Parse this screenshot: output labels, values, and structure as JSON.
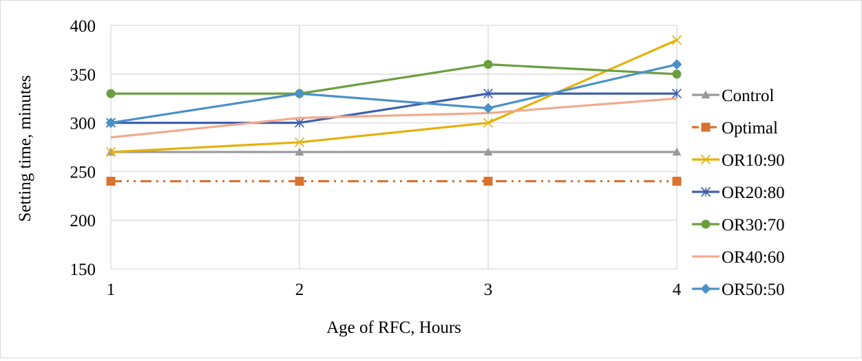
{
  "chart_data": {
    "type": "line",
    "title": "",
    "xlabel": "Age of RFC, Hours",
    "ylabel": "Setting time, minutes",
    "x": [
      1,
      2,
      3,
      4
    ],
    "x_tick_labels": [
      "1",
      "2",
      "3",
      "4"
    ],
    "ylim": [
      150,
      400
    ],
    "y_ticks": [
      150,
      200,
      250,
      300,
      350,
      400
    ],
    "grid": "both",
    "legend_position": "right",
    "series": [
      {
        "name": "Control",
        "values": [
          270,
          270,
          270,
          270
        ],
        "color": "#999999",
        "marker": "triangle",
        "dash": "solid"
      },
      {
        "name": "Optimal",
        "values": [
          240,
          240,
          240,
          240
        ],
        "color": "#D9722E",
        "marker": "square",
        "dash": "dash-dot-dot"
      },
      {
        "name": "OR10:90",
        "values": [
          270,
          280,
          300,
          385
        ],
        "color": "#E6B10A",
        "marker": "x",
        "dash": "solid"
      },
      {
        "name": "OR20:80",
        "values": [
          300,
          300,
          330,
          330
        ],
        "color": "#3E5FAF",
        "marker": "star",
        "dash": "solid"
      },
      {
        "name": "OR30:70",
        "values": [
          330,
          330,
          360,
          350
        ],
        "color": "#6A9E3F",
        "marker": "circle",
        "dash": "solid"
      },
      {
        "name": "OR40:60",
        "values": [
          285,
          305,
          310,
          325
        ],
        "color": "#F2A98E",
        "marker": "none",
        "dash": "solid"
      },
      {
        "name": "OR50:50",
        "values": [
          300,
          330,
          315,
          360
        ],
        "color": "#4A90C9",
        "marker": "diamond",
        "dash": "solid"
      }
    ]
  }
}
